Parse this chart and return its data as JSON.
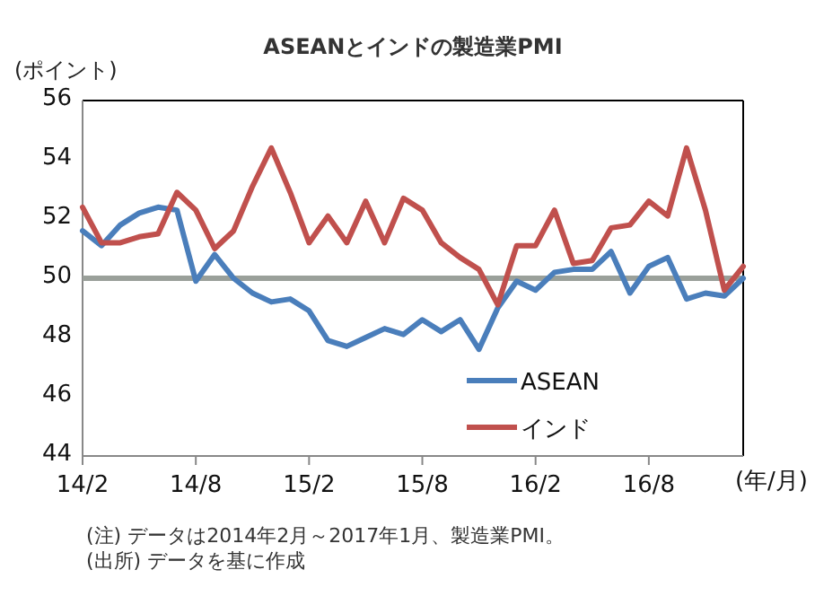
{
  "chart_data": {
    "type": "line",
    "title": "ASEANとインドの製造業PMI",
    "ylabel": "(ポイント)",
    "xlabel": "(年/月)",
    "x": [
      "2014-02",
      "2014-03",
      "2014-04",
      "2014-05",
      "2014-06",
      "2014-07",
      "2014-08",
      "2014-09",
      "2014-10",
      "2014-11",
      "2014-12",
      "2015-01",
      "2015-02",
      "2015-03",
      "2015-04",
      "2015-05",
      "2015-06",
      "2015-07",
      "2015-08",
      "2015-09",
      "2015-10",
      "2015-11",
      "2015-12",
      "2016-01",
      "2016-02",
      "2016-03",
      "2016-04",
      "2016-05",
      "2016-06",
      "2016-07",
      "2016-08",
      "2016-09",
      "2016-10",
      "2016-11",
      "2016-12",
      "2017-01"
    ],
    "series": [
      {
        "name": "ASEAN",
        "color": "#4a7ebb",
        "values": [
          51.6,
          51.1,
          51.8,
          52.2,
          52.4,
          52.3,
          49.9,
          50.8,
          50.0,
          49.5,
          49.2,
          49.3,
          48.9,
          47.9,
          47.7,
          48.0,
          48.3,
          48.1,
          48.6,
          48.2,
          48.6,
          47.6,
          49.0,
          49.9,
          49.6,
          50.2,
          50.3,
          50.3,
          50.9,
          49.5,
          50.4,
          50.7,
          49.3,
          49.5,
          49.4,
          50.0
        ]
      },
      {
        "name": "インド",
        "color": "#c0504d",
        "values": [
          52.4,
          51.2,
          51.2,
          51.4,
          51.5,
          52.9,
          52.3,
          51.0,
          51.6,
          53.1,
          54.4,
          52.9,
          51.2,
          52.1,
          51.2,
          52.6,
          51.2,
          52.7,
          52.3,
          51.2,
          50.7,
          50.3,
          49.1,
          51.1,
          51.1,
          52.3,
          50.5,
          50.6,
          51.7,
          51.8,
          52.6,
          52.1,
          54.4,
          52.3,
          49.6,
          50.4
        ]
      }
    ],
    "xlim": [
      "2014-02",
      "2017-01"
    ],
    "xticks": [
      {
        "value": "2014-02",
        "label": "14/2"
      },
      {
        "value": "2014-08",
        "label": "14/8"
      },
      {
        "value": "2015-02",
        "label": "15/2"
      },
      {
        "value": "2015-08",
        "label": "15/8"
      },
      {
        "value": "2016-02",
        "label": "16/2"
      },
      {
        "value": "2016-08",
        "label": "16/8"
      }
    ],
    "ylim": [
      44,
      56
    ],
    "yticks": [
      44,
      46,
      48,
      50,
      52,
      54,
      56
    ],
    "ref_lines": [
      {
        "axis": "y",
        "value": 50,
        "color": "#9aa09a"
      }
    ],
    "legend": "bottom right",
    "grid": false,
    "marker": "none",
    "line_style": "solid",
    "annotations": [
      "(注) データは2014年2月～2017年1月、製造業PMI。",
      "(出所) データを基に作成"
    ]
  }
}
